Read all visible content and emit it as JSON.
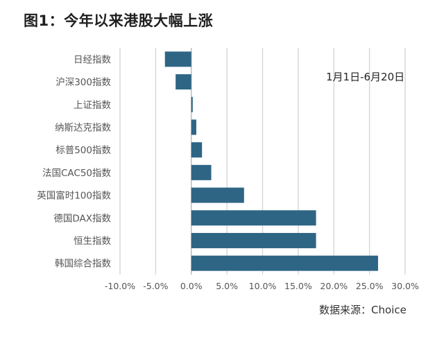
{
  "title": "图1：今年以来港股大幅上涨",
  "annotation": "1月1日-6月20日",
  "source": "数据来源：Choice",
  "colors": {
    "bar": "#2e6585",
    "grid": "#d6d6d6",
    "axis": "#bfbfbf",
    "label": "#555555"
  },
  "chart_data": {
    "type": "bar",
    "orientation": "horizontal",
    "title": "图1：今年以来港股大幅上涨",
    "categories": [
      "日经指数",
      "沪深300指数",
      "上证指数",
      "纳斯达克指数",
      "标普500指数",
      "法国CAC50指数",
      "英国富时100指数",
      "德国DAX指数",
      "恒生指数",
      "韩国综合指数"
    ],
    "values": [
      -3.7,
      -2.2,
      0.2,
      0.7,
      1.5,
      2.8,
      7.4,
      17.5,
      17.5,
      26.2
    ],
    "xlim": [
      -10,
      30
    ],
    "xticks": [
      -10,
      -5,
      0,
      5,
      10,
      15,
      20,
      25,
      30
    ],
    "xtick_labels": [
      "-10.0%",
      "-5.0%",
      "0.0%",
      "5.0%",
      "10.0%",
      "15.0%",
      "20.0%",
      "25.0%",
      "30.0%"
    ],
    "grid": true,
    "legend": false
  }
}
